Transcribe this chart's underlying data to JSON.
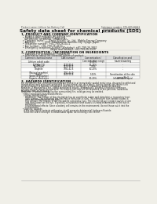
{
  "bg_color": "#f0efe8",
  "header_left": "Product name: Lithium Ion Battery Cell",
  "header_right_line1": "Substance number: SRS-SDS-00013",
  "header_right_line2": "Established / Revision: Dec.7.2010",
  "title": "Safety data sheet for chemical products (SDS)",
  "section1_title": "1. PRODUCT AND COMPANY IDENTIFICATION",
  "section1_lines": [
    "  • Product name: Lithium Ion Battery Cell",
    "  • Product code: Cylindrical-type cell",
    "    (UR18650U, UR18650L, UR18650A)",
    "  • Company name:      Sanyo Electric Co., Ltd.  Mobile Energy Company",
    "  • Address:            2001  Kamikomae, Sumoto-City, Hyogo, Japan",
    "  • Telephone number:  +81-799-26-4111",
    "  • Fax number:  +81-799-26-4120",
    "  • Emergency telephone number (Weekday): +81-799-26-3842",
    "                                     (Night and holiday): +81-799-26-3120"
  ],
  "section2_title": "2. COMPOSITION / INFORMATION ON INGREDIENTS",
  "section2_sub": "  • Substance or preparation: Preparation",
  "section2_sub2": "  • Information about the chemical nature of product:",
  "table_col_names": [
    "Common chemical name",
    "CAS number",
    "Concentration /\nConcentration range",
    "Classification and\nhazard labeling"
  ],
  "table_rows": [
    [
      "Lithium cobalt oxide\n(LiMnCo)O2)",
      "-",
      "30-40%",
      "-"
    ],
    [
      "Iron",
      "7439-89-6",
      "15-25%",
      "-"
    ],
    [
      "Aluminum",
      "7429-90-5",
      "2-5%",
      "-"
    ],
    [
      "Graphite\n(Natural graphite)\n(Artificial graphite)",
      "7782-42-5\n7782-44-9",
      "10-20%",
      "-"
    ],
    [
      "Copper",
      "7440-50-8",
      "5-15%",
      "Sensitization of the skin\ngroup No.2"
    ],
    [
      "Organic electrolyte",
      "-",
      "10-20%",
      "Inflammable liquid"
    ]
  ],
  "section3_title": "3. HAZARDS IDENTIFICATION",
  "section3_para1": [
    "For the battery cell, chemical materials are stored in a hermetically sealed metal case, designed to withstand",
    "temperatures and pressures generated during normal use. As a result, during normal use, there is no",
    "physical danger of ignition or explosion and there is no danger of hazardous materials leakage.",
    "However, if exposed to a fire, added mechanical shocks, decomposed, shorted electrically or misuse,",
    "the gas release cannot be operated. The battery cell case will be breached or fire-patterns, hazardous",
    "materials may be released.",
    "Moreover, if heated strongly by the surrounding fire, solid gas may be emitted."
  ],
  "section3_bullet1": "  • Most important hazard and effects:",
  "section3_health": [
    "    Human health effects:",
    "      Inhalation: The release of the electrolyte has an anesthetic action and stimulates a respiratory tract.",
    "      Skin contact: The release of the electrolyte stimulates a skin. The electrolyte skin contact causes a",
    "      sore and stimulation on the skin.",
    "      Eye contact: The release of the electrolyte stimulates eyes. The electrolyte eye contact causes a sore",
    "      and stimulation on the eye. Especially, a substance that causes a strong inflammation of the eye is",
    "      contained.",
    "      Environmental effects: Since a battery cell remains in the environment, do not throw out it into the",
    "      environment."
  ],
  "section3_bullet2": "  • Specific hazards:",
  "section3_specific": [
    "    If the electrolyte contacts with water, it will generate detrimental hydrogen fluoride.",
    "    Since the seal electrolyte is inflammable liquid, do not bring close to fire."
  ]
}
